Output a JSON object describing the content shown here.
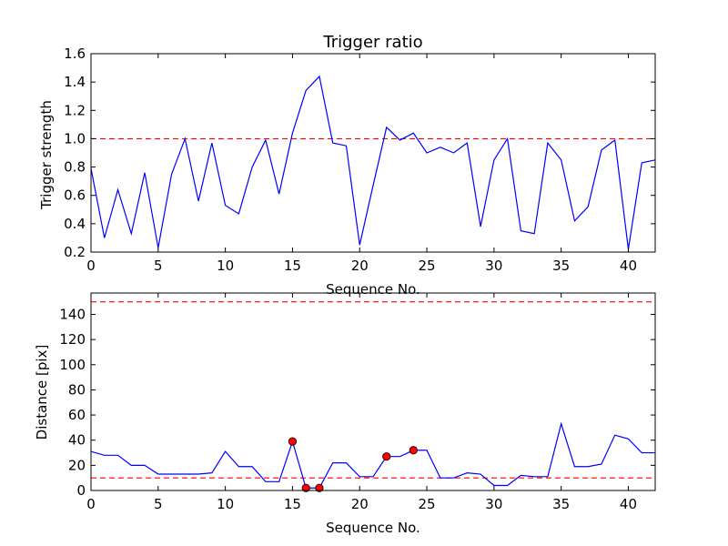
{
  "chart_data": [
    {
      "type": "line",
      "title": "Trigger ratio",
      "xlabel": "Sequence No.",
      "ylabel": "Trigger strength",
      "xlim": [
        0,
        42
      ],
      "ylim": [
        0.2,
        1.6
      ],
      "xticks": [
        "0",
        "5",
        "10",
        "15",
        "20",
        "25",
        "30",
        "35",
        "40"
      ],
      "yticks": [
        "0.2",
        "0.4",
        "0.6",
        "0.8",
        "1.0",
        "1.2",
        "1.4",
        "1.6"
      ],
      "series": [
        {
          "name": "trigger strength",
          "color": "#0000ff",
          "x": [
            0,
            1,
            2,
            3,
            4,
            5,
            6,
            7,
            8,
            9,
            10,
            11,
            12,
            13,
            14,
            15,
            16,
            17,
            18,
            19,
            20,
            21,
            22,
            23,
            24,
            25,
            26,
            27,
            28,
            29,
            30,
            31,
            32,
            33,
            34,
            35,
            36,
            37,
            38,
            39,
            40,
            41,
            42
          ],
          "y": [
            0.79,
            0.3,
            0.64,
            0.33,
            0.76,
            0.23,
            0.75,
            1.0,
            0.56,
            0.97,
            0.53,
            0.47,
            0.8,
            0.99,
            0.61,
            1.04,
            1.34,
            1.44,
            0.97,
            0.95,
            0.25,
            0.67,
            1.08,
            0.99,
            1.04,
            0.9,
            0.94,
            0.9,
            0.97,
            0.38,
            0.85,
            1.0,
            0.35,
            0.33,
            0.97,
            0.85,
            0.42,
            0.52,
            0.92,
            0.99,
            0.22,
            0.83,
            0.85
          ]
        }
      ],
      "hlines": [
        {
          "y": 1.0,
          "color": "#ff0000",
          "style": "dashed"
        }
      ]
    },
    {
      "type": "line",
      "title": "",
      "xlabel": "Sequence No.",
      "ylabel": "Distance [pix]",
      "xlim": [
        0,
        42
      ],
      "ylim": [
        0,
        157
      ],
      "xticks": [
        "0",
        "5",
        "10",
        "15",
        "20",
        "25",
        "30",
        "35",
        "40"
      ],
      "yticks": [
        "0",
        "20",
        "40",
        "60",
        "80",
        "100",
        "120",
        "140"
      ],
      "series": [
        {
          "name": "distance",
          "color": "#0000ff",
          "x": [
            0,
            1,
            2,
            3,
            4,
            5,
            6,
            7,
            8,
            9,
            10,
            11,
            12,
            13,
            14,
            15,
            16,
            17,
            18,
            19,
            20,
            21,
            22,
            23,
            24,
            25,
            26,
            27,
            28,
            29,
            30,
            31,
            32,
            33,
            34,
            35,
            36,
            37,
            38,
            39,
            40,
            41,
            42
          ],
          "y": [
            31,
            28,
            28,
            20,
            20,
            13,
            13,
            13,
            13,
            14,
            31,
            19,
            19,
            7,
            7,
            39,
            2,
            2,
            22,
            22,
            11,
            11,
            27,
            27,
            32,
            32,
            10,
            10,
            14,
            13,
            4,
            4,
            12,
            11,
            11,
            53,
            19,
            19,
            21,
            44,
            41,
            30,
            30
          ]
        }
      ],
      "markers": {
        "color": "#ff0000",
        "x": [
          15,
          16,
          17,
          22,
          24
        ],
        "y": [
          39,
          2,
          2,
          27,
          32
        ]
      },
      "hlines": [
        {
          "y": 150,
          "color": "#ff0000",
          "style": "dashed"
        },
        {
          "y": 10,
          "color": "#ff0000",
          "style": "dashed"
        }
      ]
    }
  ]
}
